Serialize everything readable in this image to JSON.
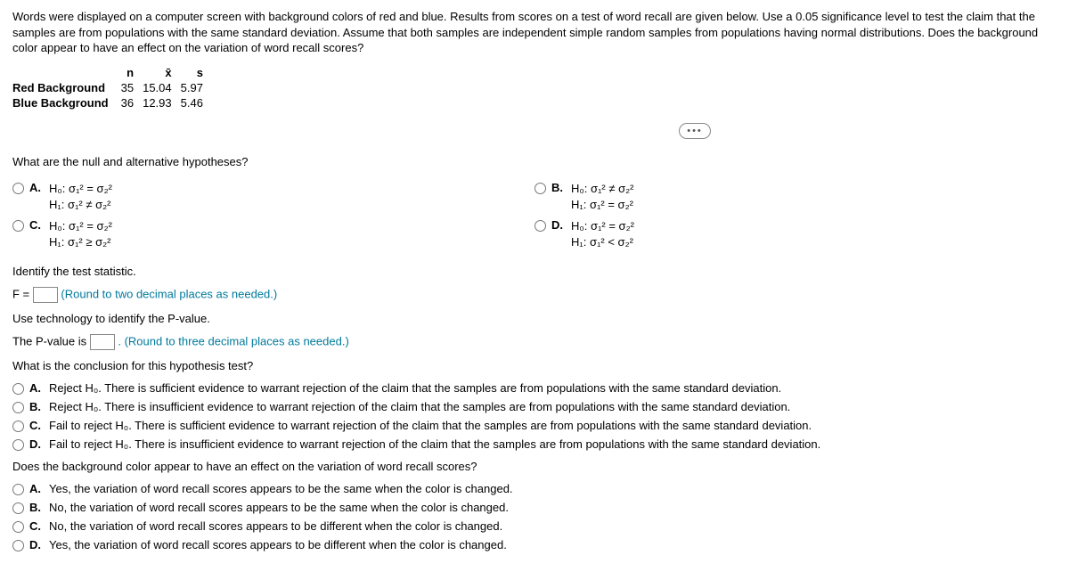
{
  "intro": "Words were displayed on a computer screen with background colors of red and blue. Results from scores on a test of word recall are given below. Use a 0.05 significance level to test the claim that the samples are from populations with the same standard deviation. Assume that both samples are independent simple random samples from populations having normal distributions. Does the background color appear to have an effect on the variation of word recall scores?",
  "table": {
    "headers": [
      "n",
      "x̄",
      "s"
    ],
    "rows": [
      {
        "label": "Red Background",
        "n": "35",
        "xbar": "15.04",
        "s": "5.97"
      },
      {
        "label": "Blue Background",
        "n": "36",
        "xbar": "12.93",
        "s": "5.46"
      }
    ]
  },
  "q1": "What are the null and alternative hypotheses?",
  "hyp": {
    "A": {
      "h0": "H₀: σ₁² = σ₂²",
      "h1": "H₁: σ₁² ≠ σ₂²"
    },
    "B": {
      "h0": "H₀: σ₁² ≠ σ₂²",
      "h1": "H₁: σ₁² = σ₂²"
    },
    "C": {
      "h0": "H₀: σ₁² = σ₂²",
      "h1": "H₁: σ₁² ≥ σ₂²"
    },
    "D": {
      "h0": "H₀: σ₁² = σ₂²",
      "h1": "H₁: σ₁² < σ₂²"
    }
  },
  "labels": {
    "A": "A.",
    "B": "B.",
    "C": "C.",
    "D": "D."
  },
  "ident": "Identify the test statistic.",
  "fprefix": "F =",
  "fhint": "(Round to two decimal places as needed.)",
  "usep": "Use technology to identify the P-value.",
  "pv": "The P-value is",
  "pvhint": ". (Round to three decimal places as needed.)",
  "concq": "What is the conclusion for this hypothesis test?",
  "conc": {
    "A": "Reject H₀. There is sufficient evidence to warrant rejection of the claim that the samples are from populations with the same standard deviation.",
    "B": "Reject H₀. There is insufficient evidence to warrant rejection of the claim that the samples are from populations with the same standard deviation.",
    "C": "Fail to reject H₀. There is sufficient evidence to warrant rejection of the claim that the samples are from populations with the same standard deviation.",
    "D": "Fail to reject H₀. There is insufficient evidence to warrant rejection of the claim that the samples are from populations with the same standard deviation."
  },
  "effq": "Does the background color appear to have an effect on the variation of word recall scores?",
  "eff": {
    "A": "Yes, the variation of word recall scores appears to be the same when the color is changed.",
    "B": "No, the variation of word recall scores appears to be the same when the color is changed.",
    "C": "No, the variation of word recall scores appears to be different when the color is changed.",
    "D": "Yes, the variation of word recall scores appears to be different when the color is changed."
  }
}
